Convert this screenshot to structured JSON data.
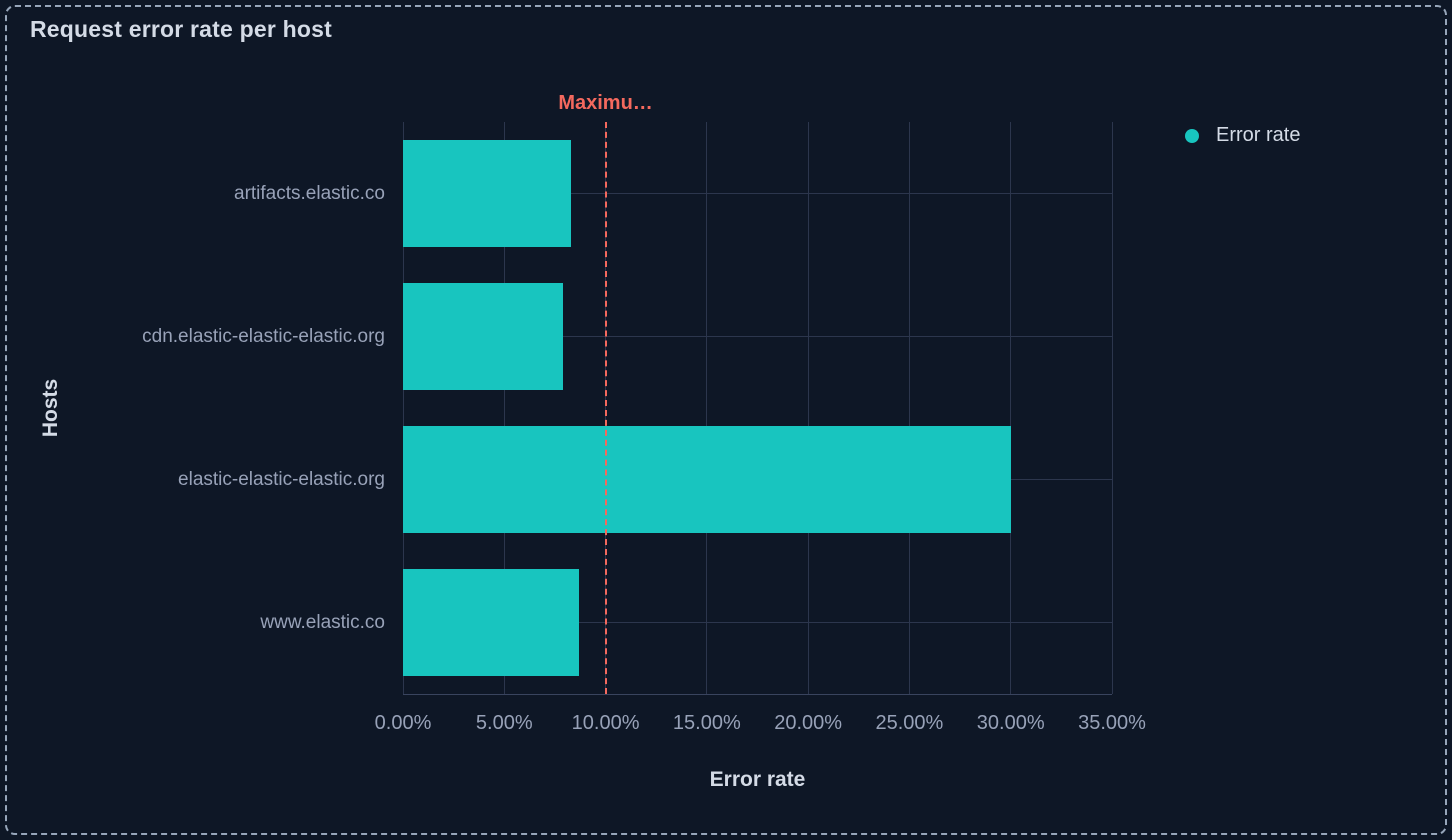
{
  "panel": {
    "title": "Request error rate per host"
  },
  "legend": {
    "items": [
      {
        "label": "Error rate",
        "color": "#18c5bf"
      }
    ]
  },
  "chart_data": {
    "type": "bar",
    "orientation": "horizontal",
    "title": "Request error rate per host",
    "xlabel": "Error rate",
    "ylabel": "Hosts",
    "categories": [
      "artifacts.elastic.co",
      "cdn.elastic-elastic-elastic.org",
      "elastic-elastic-elastic.org",
      "www.elastic.co"
    ],
    "series": [
      {
        "name": "Error rate",
        "values": [
          8.3,
          7.9,
          30.0,
          8.7
        ],
        "unit": "%",
        "color": "#18c5bf"
      }
    ],
    "xlim": [
      0,
      35
    ],
    "x_tick_values": [
      0,
      5,
      10,
      15,
      20,
      25,
      30,
      35
    ],
    "x_tick_labels": [
      "0.00%",
      "5.00%",
      "10.00%",
      "15.00%",
      "20.00%",
      "25.00%",
      "30.00%",
      "35.00%"
    ],
    "grid": true,
    "legend_position": "top-right",
    "threshold": {
      "value": 10,
      "label": "Maximu…",
      "color": "#f4695e"
    }
  },
  "colors": {
    "background": "#0e1726",
    "frame_border": "#97a6ba",
    "gridline": "#2c364d",
    "bar": "#18c5bf",
    "threshold": "#f4695e",
    "text_primary": "#d4dbe6",
    "text_secondary": "#98a2b8"
  }
}
